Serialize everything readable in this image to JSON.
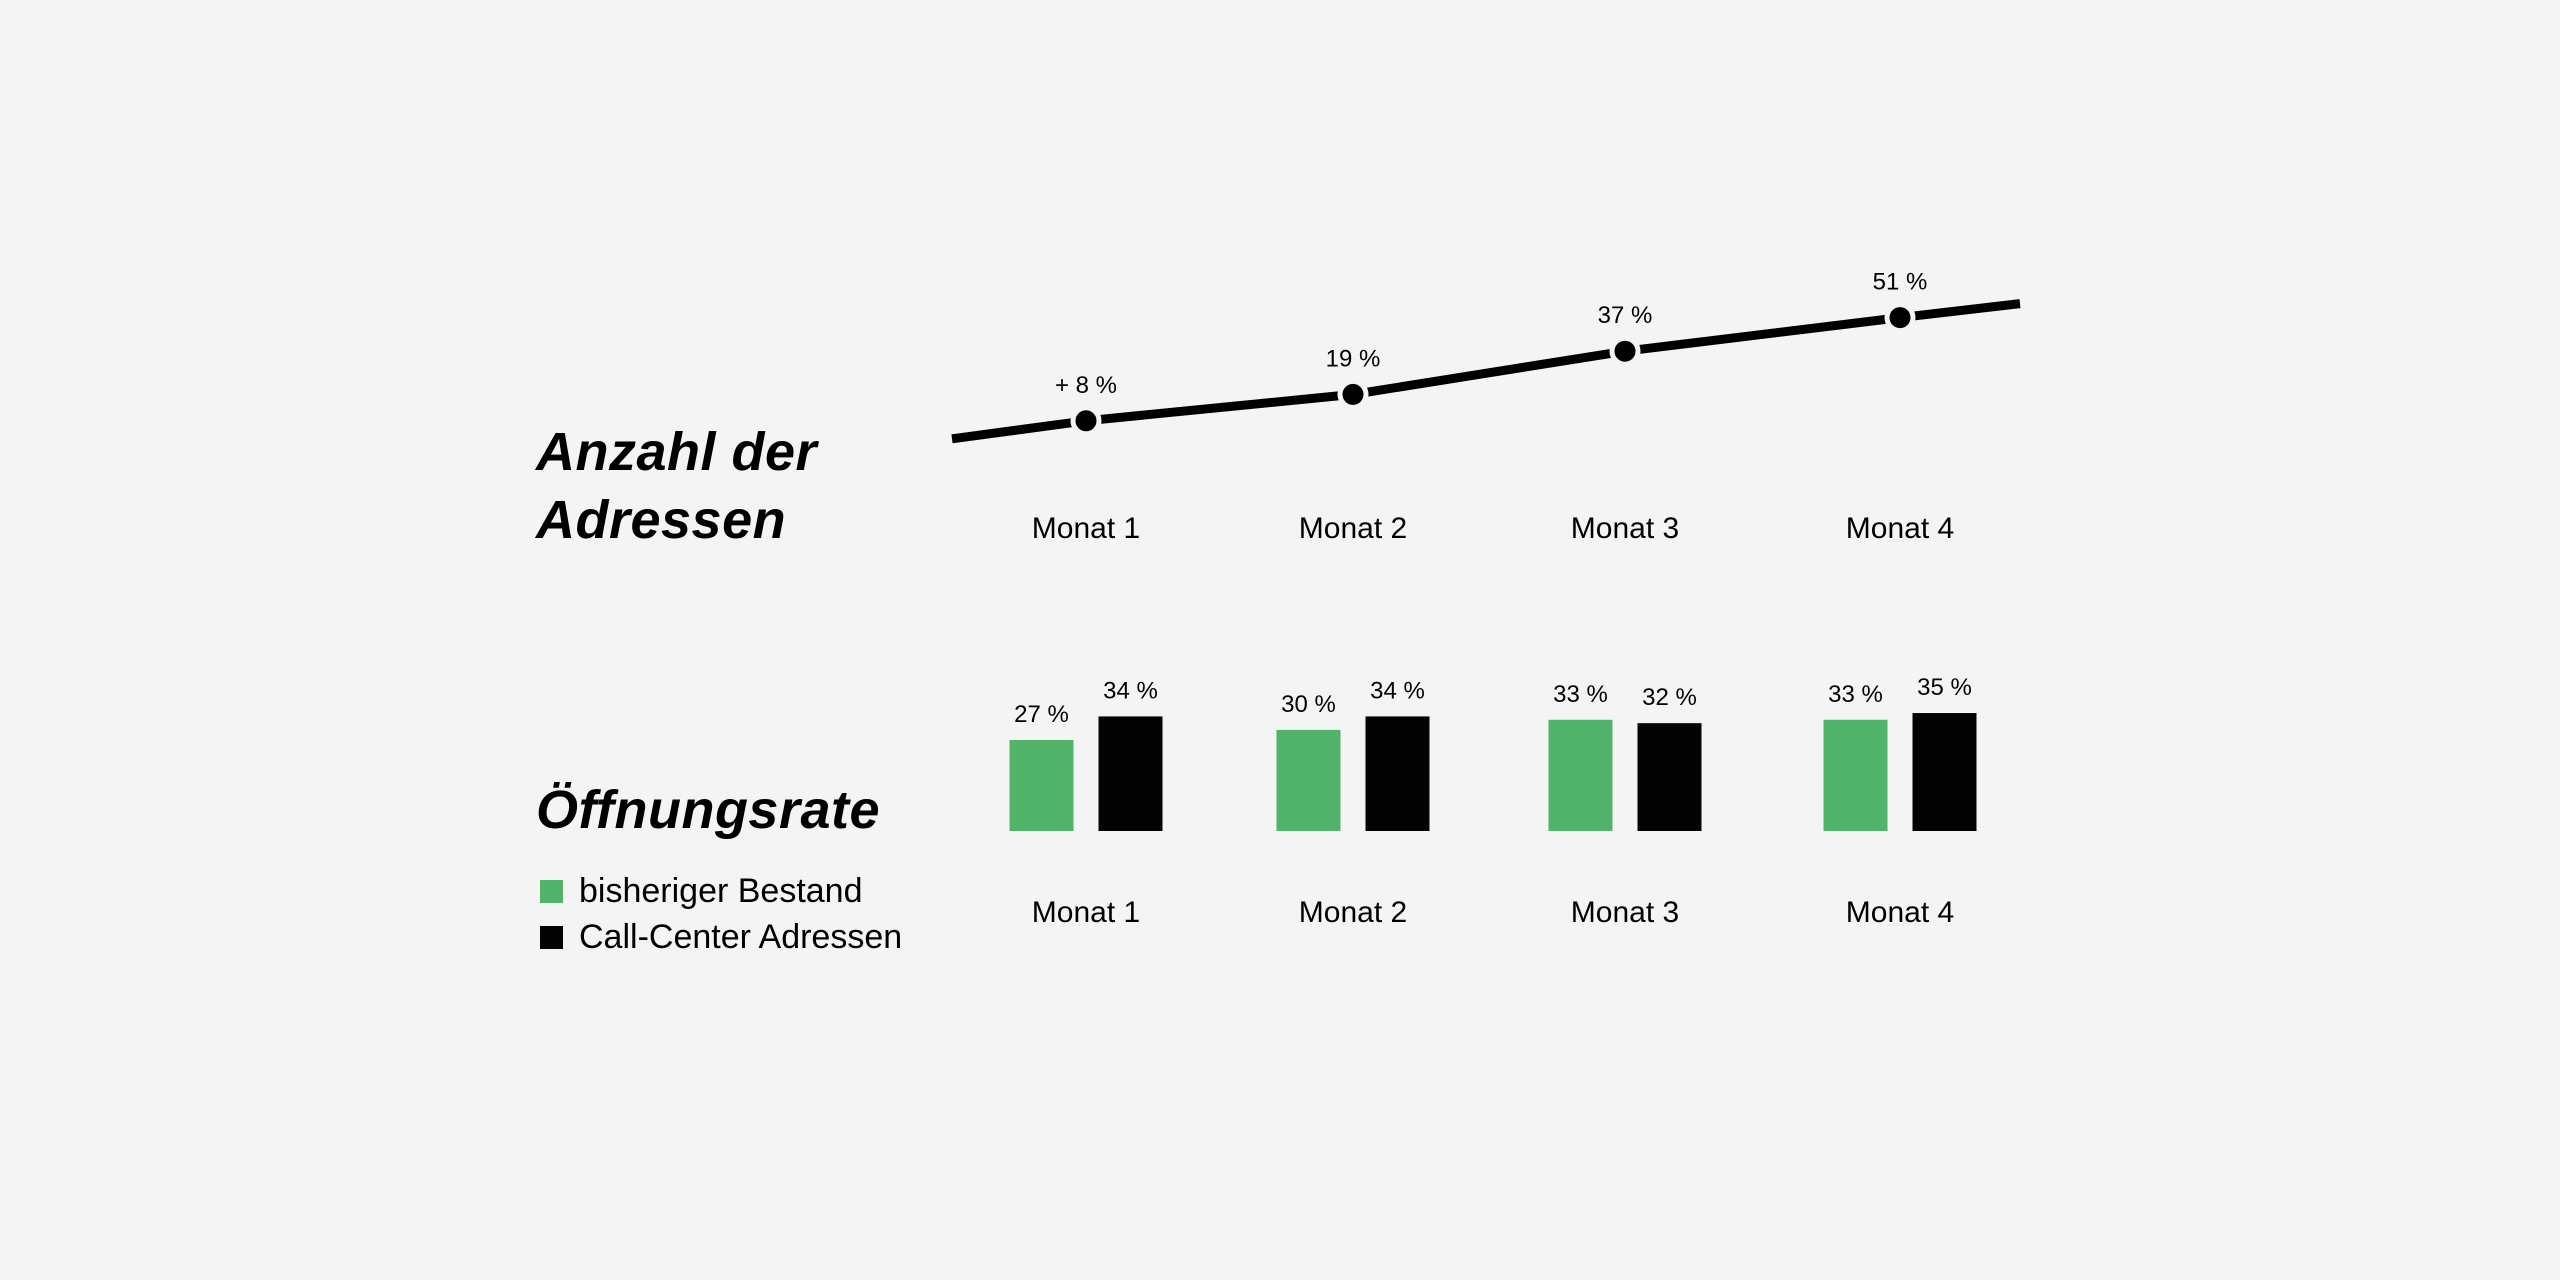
{
  "colors": {
    "background": "#f4f4f4",
    "series_green": "#52b36a",
    "series_black": "#030304",
    "line": "#000000"
  },
  "line_panel": {
    "title_line1": "Anzahl der",
    "title_line2": "Adressen"
  },
  "bar_panel": {
    "title": "Öffnungsrate",
    "legend": [
      {
        "label": "bisheriger Bestand",
        "color": "#52b36a"
      },
      {
        "label": "Call-Center Adressen",
        "color": "#030304"
      }
    ]
  },
  "chart_data": [
    {
      "type": "line",
      "title": "Anzahl der Adressen",
      "categories": [
        "Monat 1",
        "Monat 2",
        "Monat 3",
        "Monat 4"
      ],
      "values": [
        8,
        19,
        37,
        51
      ],
      "data_labels": [
        "+ 8 %",
        "19 %",
        "37 %",
        "51 %"
      ],
      "unit": "%",
      "grid": false,
      "legend": "none"
    },
    {
      "type": "bar",
      "title": "Öffnungsrate",
      "categories": [
        "Monat 1",
        "Monat 2",
        "Monat 3",
        "Monat 4"
      ],
      "series": [
        {
          "name": "bisheriger Bestand",
          "values": [
            27,
            30,
            33,
            33
          ],
          "labels": [
            "27 %",
            "30 %",
            "33 %",
            "33 %"
          ],
          "color": "#52b36a"
        },
        {
          "name": "Call-Center Adressen",
          "values": [
            34,
            34,
            32,
            35
          ],
          "labels": [
            "34 %",
            "34 %",
            "32 %",
            "35 %"
          ],
          "color": "#030304"
        }
      ],
      "unit": "%",
      "grid": false,
      "legend": "left"
    }
  ]
}
